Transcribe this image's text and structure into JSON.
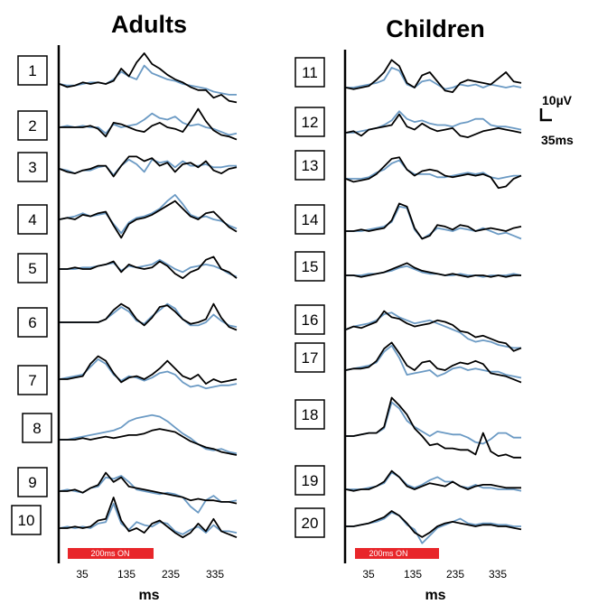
{
  "chart_data": [
    {
      "type": "line",
      "title": "Adults",
      "xlabel": "ms",
      "x_ticks": [
        "35",
        "135",
        "235",
        "335"
      ],
      "stimulus_label": "200ms ON",
      "series": [
        {
          "color": "#000000"
        },
        {
          "color": "#6B9AC4"
        }
      ],
      "participants": [
        {
          "label": "1",
          "black": [
            0,
            -2,
            -1,
            1,
            0,
            1,
            0,
            2,
            10,
            5,
            14,
            20,
            13,
            10,
            6,
            3,
            1,
            -2,
            -4,
            -4,
            -9,
            -7,
            -11,
            -12
          ],
          "blue": [
            0,
            -1,
            -1,
            0,
            1,
            1,
            0,
            3,
            8,
            5,
            3,
            12,
            7,
            5,
            3,
            2,
            0,
            -1,
            -2,
            -3,
            -5,
            -6,
            -7,
            -7
          ]
        },
        {
          "label": "2",
          "black": [
            0,
            0,
            0,
            0,
            1,
            -1,
            -6,
            3,
            2,
            0,
            -2,
            -3,
            1,
            3,
            0,
            -1,
            -3,
            4,
            12,
            4,
            -2,
            -5,
            -6,
            -8
          ],
          "blue": [
            0,
            1,
            0,
            1,
            0,
            0,
            -4,
            2,
            0,
            1,
            2,
            5,
            9,
            6,
            5,
            7,
            3,
            1,
            2,
            0,
            -1,
            -3,
            -5,
            -4
          ]
        },
        {
          "label": "3",
          "black": [
            0,
            -2,
            -3,
            -1,
            0,
            2,
            2,
            -5,
            2,
            8,
            8,
            5,
            7,
            2,
            4,
            -2,
            3,
            4,
            1,
            5,
            -1,
            -3,
            0,
            1
          ],
          "blue": [
            0,
            -1,
            -3,
            -1,
            -1,
            1,
            2,
            -4,
            2,
            6,
            3,
            -2,
            6,
            4,
            5,
            1,
            5,
            2,
            2,
            3,
            1,
            1,
            2,
            2
          ]
        },
        {
          "label": "4",
          "black": [
            0,
            1,
            0,
            3,
            2,
            4,
            5,
            -4,
            -12,
            -3,
            0,
            1,
            3,
            6,
            9,
            12,
            7,
            2,
            0,
            4,
            5,
            0,
            -5,
            -8
          ],
          "blue": [
            0,
            1,
            2,
            4,
            2,
            3,
            4,
            -3,
            -9,
            -2,
            1,
            2,
            4,
            7,
            12,
            16,
            10,
            3,
            1,
            2,
            0,
            -1,
            -4,
            -6
          ]
        },
        {
          "label": "5",
          "black": [
            0,
            0,
            1,
            0,
            0,
            2,
            3,
            5,
            -2,
            3,
            1,
            0,
            1,
            5,
            2,
            -3,
            -6,
            -2,
            0,
            6,
            8,
            0,
            -2,
            -6
          ],
          "blue": [
            0,
            0,
            0,
            1,
            1,
            2,
            3,
            4,
            -1,
            2,
            1,
            2,
            3,
            6,
            3,
            0,
            -2,
            1,
            2,
            3,
            2,
            0,
            -3,
            -5
          ]
        },
        {
          "label": "6",
          "black": [
            0,
            0,
            0,
            0,
            0,
            0,
            2,
            8,
            12,
            9,
            2,
            -2,
            3,
            10,
            11,
            7,
            2,
            -1,
            0,
            2,
            12,
            3,
            -3,
            -5
          ],
          "blue": [
            0,
            0,
            0,
            0,
            0,
            0,
            2,
            6,
            10,
            7,
            1,
            -1,
            4,
            8,
            12,
            9,
            2,
            -2,
            -2,
            0,
            5,
            1,
            -2,
            -3
          ]
        },
        {
          "label": "7",
          "black": [
            0,
            0,
            1,
            2,
            10,
            15,
            12,
            4,
            -2,
            1,
            2,
            0,
            3,
            7,
            12,
            7,
            2,
            0,
            3,
            -3,
            0,
            -2,
            -1,
            0
          ],
          "blue": [
            0,
            1,
            2,
            3,
            8,
            13,
            10,
            3,
            -1,
            2,
            1,
            -1,
            1,
            4,
            5,
            3,
            -2,
            -5,
            -4,
            -6,
            -5,
            -4,
            -4,
            -3
          ]
        },
        {
          "label": "8",
          "black": [
            0,
            0,
            0,
            1,
            0,
            1,
            2,
            1,
            2,
            3,
            3,
            4,
            6,
            7,
            6,
            5,
            2,
            -1,
            -3,
            -5,
            -6,
            -8,
            -9,
            -10
          ],
          "blue": [
            0,
            0,
            1,
            2,
            3,
            4,
            5,
            6,
            8,
            12,
            14,
            15,
            16,
            15,
            12,
            8,
            4,
            1,
            -3,
            -6,
            -7,
            -6,
            -8,
            -9
          ]
        },
        {
          "label": "9",
          "black": [
            0,
            0,
            1,
            -1,
            2,
            4,
            12,
            6,
            9,
            3,
            2,
            1,
            0,
            -1,
            -2,
            -3,
            -4,
            -6,
            -5,
            -6,
            -6,
            -7,
            -7,
            -8
          ],
          "blue": [
            0,
            1,
            0,
            -1,
            2,
            3,
            9,
            8,
            10,
            6,
            1,
            0,
            -1,
            -2,
            -1,
            -2,
            -4,
            -10,
            -14,
            -6,
            -3,
            -7,
            -7,
            -6
          ]
        },
        {
          "label": "10",
          "black": [
            0,
            0,
            1,
            0,
            1,
            5,
            6,
            20,
            5,
            -2,
            0,
            -3,
            3,
            5,
            1,
            -3,
            -6,
            -3,
            3,
            -2,
            6,
            -2,
            -4,
            -6
          ],
          "blue": [
            0,
            1,
            0,
            1,
            0,
            3,
            4,
            16,
            3,
            -1,
            4,
            2,
            1,
            4,
            3,
            -2,
            -4,
            -1,
            1,
            -3,
            2,
            -2,
            -2,
            -3
          ]
        }
      ]
    },
    {
      "type": "line",
      "title": "Children",
      "xlabel": "ms",
      "x_ticks": [
        "35",
        "135",
        "235",
        "335"
      ],
      "stimulus_label": "200ms ON",
      "scale_bar": {
        "voltage": "10µV",
        "time": "35ms"
      },
      "series": [
        {
          "color": "#000000"
        },
        {
          "color": "#6B9AC4"
        }
      ],
      "participants": [
        {
          "label": "11",
          "black": [
            0,
            -1,
            0,
            1,
            5,
            10,
            18,
            14,
            3,
            0,
            8,
            10,
            4,
            -2,
            -3,
            3,
            5,
            4,
            3,
            2,
            6,
            10,
            4,
            3
          ],
          "blue": [
            0,
            0,
            1,
            2,
            3,
            5,
            13,
            11,
            2,
            0,
            4,
            5,
            2,
            -1,
            0,
            2,
            1,
            2,
            0,
            2,
            1,
            0,
            1,
            0
          ]
        },
        {
          "label": "12",
          "black": [
            0,
            1,
            -2,
            2,
            3,
            4,
            5,
            12,
            4,
            2,
            6,
            3,
            1,
            2,
            3,
            -2,
            -3,
            -1,
            1,
            2,
            3,
            2,
            1,
            0
          ],
          "blue": [
            0,
            0,
            1,
            2,
            3,
            5,
            8,
            14,
            9,
            7,
            8,
            6,
            5,
            5,
            4,
            6,
            7,
            9,
            9,
            5,
            4,
            4,
            3,
            2
          ]
        },
        {
          "label": "13",
          "black": [
            0,
            -2,
            -1,
            0,
            3,
            8,
            13,
            14,
            6,
            2,
            5,
            6,
            5,
            2,
            1,
            2,
            3,
            2,
            3,
            1,
            -6,
            -5,
            0,
            2
          ],
          "blue": [
            0,
            0,
            0,
            1,
            4,
            6,
            10,
            12,
            6,
            3,
            3,
            3,
            1,
            1,
            2,
            3,
            4,
            3,
            4,
            1,
            0,
            1,
            2,
            2
          ]
        },
        {
          "label": "14",
          "black": [
            0,
            0,
            1,
            0,
            1,
            2,
            7,
            18,
            16,
            2,
            -5,
            -3,
            4,
            3,
            1,
            4,
            3,
            0,
            1,
            2,
            1,
            0,
            2,
            3
          ],
          "blue": [
            0,
            0,
            0,
            1,
            2,
            3,
            6,
            16,
            15,
            1,
            -5,
            -2,
            2,
            1,
            0,
            2,
            1,
            0,
            2,
            0,
            -2,
            -1,
            -3,
            -5
          ]
        },
        {
          "label": "15",
          "black": [
            0,
            0,
            -1,
            0,
            1,
            2,
            4,
            6,
            8,
            5,
            3,
            2,
            1,
            0,
            1,
            0,
            -1,
            0,
            0,
            -1,
            0,
            -1,
            0,
            0
          ],
          "blue": [
            0,
            0,
            0,
            1,
            1,
            2,
            3,
            5,
            6,
            4,
            2,
            1,
            1,
            0,
            0,
            1,
            0,
            0,
            -1,
            0,
            0,
            0,
            1,
            0
          ]
        },
        {
          "label": "16",
          "black": [
            0,
            2,
            1,
            3,
            5,
            12,
            8,
            7,
            4,
            2,
            3,
            4,
            6,
            5,
            3,
            -1,
            -2,
            -5,
            -4,
            -6,
            -8,
            -9,
            -14,
            -12
          ],
          "blue": [
            0,
            2,
            3,
            4,
            6,
            10,
            11,
            8,
            6,
            4,
            5,
            6,
            4,
            2,
            0,
            -2,
            -6,
            -8,
            -7,
            -8,
            -10,
            -11,
            -12,
            -12
          ]
        },
        {
          "label": "17",
          "black": [
            0,
            1,
            1,
            2,
            6,
            14,
            18,
            11,
            3,
            0,
            5,
            6,
            1,
            0,
            3,
            5,
            4,
            6,
            4,
            -2,
            -3,
            -4,
            -6,
            -8
          ],
          "blue": [
            0,
            1,
            2,
            3,
            5,
            12,
            16,
            8,
            -3,
            -2,
            -1,
            0,
            -4,
            -2,
            1,
            2,
            0,
            1,
            0,
            -1,
            -1,
            -3,
            -4,
            -5
          ]
        },
        {
          "label": "18",
          "black": [
            0,
            0,
            1,
            2,
            2,
            6,
            25,
            20,
            14,
            5,
            0,
            -6,
            -5,
            -8,
            -8,
            -9,
            -9,
            -12,
            2,
            -10,
            -13,
            -12,
            -14,
            -14
          ],
          "blue": [
            0,
            0,
            1,
            2,
            2,
            5,
            22,
            18,
            10,
            6,
            3,
            0,
            3,
            2,
            1,
            1,
            -1,
            -4,
            -5,
            -2,
            2,
            2,
            -1,
            -1
          ]
        },
        {
          "label": "19",
          "black": [
            0,
            -1,
            0,
            0,
            2,
            5,
            12,
            8,
            2,
            0,
            2,
            4,
            3,
            2,
            5,
            2,
            0,
            2,
            3,
            3,
            2,
            1,
            1,
            1
          ],
          "blue": [
            0,
            0,
            0,
            1,
            2,
            4,
            11,
            8,
            3,
            1,
            3,
            6,
            8,
            5,
            5,
            2,
            1,
            3,
            1,
            1,
            0,
            0,
            0,
            -1
          ]
        },
        {
          "label": "20",
          "black": [
            0,
            0,
            1,
            2,
            4,
            6,
            10,
            7,
            2,
            -4,
            -7,
            -4,
            0,
            2,
            3,
            2,
            1,
            0,
            1,
            1,
            0,
            0,
            -1,
            -2
          ],
          "blue": [
            0,
            0,
            1,
            2,
            3,
            5,
            9,
            7,
            1,
            -2,
            -11,
            -6,
            -1,
            1,
            3,
            5,
            2,
            1,
            2,
            2,
            1,
            1,
            0,
            0
          ]
        }
      ]
    }
  ]
}
